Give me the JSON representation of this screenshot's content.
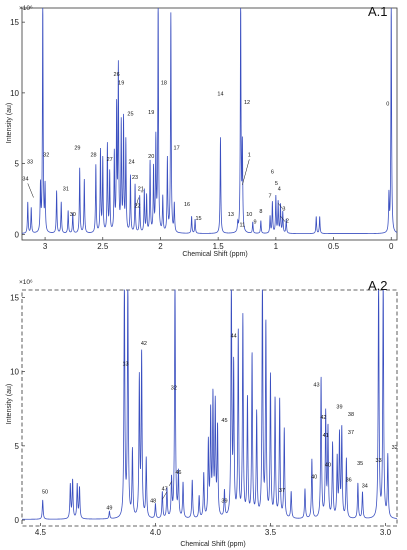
{
  "chart_data": [
    {
      "type": "line",
      "panel_label": "A.1",
      "xlabel": "Chemical Shift (ppm)",
      "ylabel": "Intensity (au)",
      "scale_label": "×10⁶",
      "x_reversed": true,
      "xlim": [
        3.2,
        -0.05
      ],
      "ylim": [
        -0.4,
        16
      ],
      "x_ticks": [
        3,
        2.5,
        2,
        1.5,
        1,
        0.5,
        0
      ],
      "x_tick_labels": [
        "3",
        "2.5",
        "2",
        "1.5",
        "1",
        "0.5",
        "0"
      ],
      "y_ticks": [
        0,
        5,
        10,
        15
      ],
      "y_tick_labels": [
        "0",
        "5",
        "10",
        "15"
      ],
      "line_color": "#3a4fc0",
      "peaks": [
        {
          "ppm": 3.15,
          "height": 2.2
        },
        {
          "ppm": 3.12,
          "height": 1.8
        },
        {
          "ppm": 3.04,
          "height": 3.3
        },
        {
          "ppm": 3.02,
          "height": 16.5
        },
        {
          "ppm": 3.0,
          "height": 3.2
        },
        {
          "ppm": 2.9,
          "height": 3.0
        },
        {
          "ppm": 2.86,
          "height": 2.2
        },
        {
          "ppm": 2.8,
          "height": 1.6
        },
        {
          "ppm": 2.76,
          "height": 1.4
        },
        {
          "ppm": 2.7,
          "height": 4.6
        },
        {
          "ppm": 2.66,
          "height": 3.8
        },
        {
          "ppm": 2.56,
          "height": 4.8
        },
        {
          "ppm": 2.52,
          "height": 5.8
        },
        {
          "ppm": 2.5,
          "height": 5.2
        },
        {
          "ppm": 2.46,
          "height": 6.2
        },
        {
          "ppm": 2.44,
          "height": 4.2
        },
        {
          "ppm": 2.4,
          "height": 5.5
        },
        {
          "ppm": 2.38,
          "height": 8.6
        },
        {
          "ppm": 2.365,
          "height": 11.5
        },
        {
          "ppm": 2.34,
          "height": 7.6
        },
        {
          "ppm": 2.32,
          "height": 7.9
        },
        {
          "ppm": 2.3,
          "height": 6.4
        },
        {
          "ppm": 2.26,
          "height": 4.0
        },
        {
          "ppm": 2.22,
          "height": 3.4
        },
        {
          "ppm": 2.18,
          "height": 2.6
        },
        {
          "ppm": 2.14,
          "height": 3.0
        },
        {
          "ppm": 2.12,
          "height": 2.6
        },
        {
          "ppm": 2.09,
          "height": 5.0
        },
        {
          "ppm": 2.06,
          "height": 4.5
        },
        {
          "ppm": 2.04,
          "height": 6.5
        },
        {
          "ppm": 2.02,
          "height": 16.5
        },
        {
          "ppm": 1.98,
          "height": 2.5
        },
        {
          "ppm": 1.94,
          "height": 5.2
        },
        {
          "ppm": 1.91,
          "height": 15.5
        },
        {
          "ppm": 1.88,
          "height": 2.0
        },
        {
          "ppm": 1.73,
          "height": 1.2
        },
        {
          "ppm": 1.7,
          "height": 1.0
        },
        {
          "ppm": 1.48,
          "height": 6.8
        },
        {
          "ppm": 1.33,
          "height": 0.6
        },
        {
          "ppm": 1.305,
          "height": 16.5
        },
        {
          "ppm": 1.29,
          "height": 6.0
        },
        {
          "ppm": 1.2,
          "height": 0.8
        },
        {
          "ppm": 1.13,
          "height": 0.9
        },
        {
          "ppm": 1.05,
          "height": 1.2
        },
        {
          "ppm": 1.03,
          "height": 2.2
        },
        {
          "ppm": 1.0,
          "height": 2.6
        },
        {
          "ppm": 0.98,
          "height": 2.2
        },
        {
          "ppm": 0.96,
          "height": 2.0
        },
        {
          "ppm": 0.94,
          "height": 1.5
        },
        {
          "ppm": 0.91,
          "height": 1.0
        },
        {
          "ppm": 0.65,
          "height": 1.2
        },
        {
          "ppm": 0.62,
          "height": 1.2
        },
        {
          "ppm": 0.02,
          "height": 2.6
        },
        {
          "ppm": 0.0,
          "height": 16.5
        }
      ],
      "annotations": [
        {
          "text": "0",
          "ppm": 0.03,
          "y": 9.1
        },
        {
          "text": "1",
          "ppm": 1.23,
          "y": 5.5
        },
        {
          "text": "2",
          "ppm": 0.9,
          "y": 0.85
        },
        {
          "text": "3",
          "ppm": 0.93,
          "y": 1.7
        },
        {
          "text": "4",
          "ppm": 0.97,
          "y": 3.1
        },
        {
          "text": "5",
          "ppm": 0.995,
          "y": 3.5
        },
        {
          "text": "6",
          "ppm": 1.03,
          "y": 4.3
        },
        {
          "text": "7",
          "ppm": 1.05,
          "y": 2.6
        },
        {
          "text": "8",
          "ppm": 1.13,
          "y": 1.5
        },
        {
          "text": "9",
          "ppm": 1.18,
          "y": 0.75
        },
        {
          "text": "10",
          "ppm": 1.23,
          "y": 1.3
        },
        {
          "text": "11",
          "ppm": 1.29,
          "y": 0.55
        },
        {
          "text": "12",
          "ppm": 1.25,
          "y": 9.2
        },
        {
          "text": "13",
          "ppm": 1.39,
          "y": 1.3
        },
        {
          "text": "14",
          "ppm": 1.48,
          "y": 9.8
        },
        {
          "text": "15",
          "ppm": 1.67,
          "y": 1.0
        },
        {
          "text": "16",
          "ppm": 1.77,
          "y": 2.0
        },
        {
          "text": "17",
          "ppm": 1.86,
          "y": 6.0
        },
        {
          "text": "18",
          "ppm": 1.97,
          "y": 10.6
        },
        {
          "text": "19",
          "ppm": 2.08,
          "y": 8.5
        },
        {
          "text": "19",
          "ppm": 2.34,
          "y": 10.6
        },
        {
          "text": "20",
          "ppm": 2.08,
          "y": 5.4
        },
        {
          "text": "21",
          "ppm": 2.17,
          "y": 3.1
        },
        {
          "text": "22",
          "ppm": 2.2,
          "y": 1.9
        },
        {
          "text": "23",
          "ppm": 2.22,
          "y": 3.9
        },
        {
          "text": "24",
          "ppm": 2.25,
          "y": 5.0
        },
        {
          "text": "25",
          "ppm": 2.26,
          "y": 8.4
        },
        {
          "text": "26",
          "ppm": 2.38,
          "y": 11.2
        },
        {
          "text": "27",
          "ppm": 2.44,
          "y": 5.2
        },
        {
          "text": "28",
          "ppm": 2.58,
          "y": 5.5
        },
        {
          "text": "29",
          "ppm": 2.72,
          "y": 6.0
        },
        {
          "text": "30",
          "ppm": 2.76,
          "y": 1.3
        },
        {
          "text": "31",
          "ppm": 2.82,
          "y": 3.1
        },
        {
          "text": "32",
          "ppm": 2.99,
          "y": 5.5
        },
        {
          "text": "33",
          "ppm": 3.13,
          "y": 5.0
        },
        {
          "text": "34",
          "ppm": 3.17,
          "y": 3.8
        }
      ],
      "leader_lines": [
        {
          "from": [
            1.23,
            5.3
          ],
          "to": [
            1.29,
            3.5
          ]
        },
        {
          "from": [
            0.92,
            0.9
          ],
          "to": [
            0.96,
            1.3
          ]
        },
        {
          "from": [
            0.94,
            1.8
          ],
          "to": [
            0.98,
            2.2
          ]
        },
        {
          "from": [
            2.21,
            2.0
          ],
          "to": [
            2.19,
            2.6
          ]
        },
        {
          "from": [
            2.17,
            3.0
          ],
          "to": [
            2.15,
            3.0
          ]
        },
        {
          "from": [
            3.15,
            3.6
          ],
          "to": [
            3.1,
            2.6
          ]
        }
      ]
    },
    {
      "type": "line",
      "panel_label": "A.2",
      "xlabel": "Chemical Shift (ppm)",
      "ylabel": "Intensity (au)",
      "scale_label": "×10⁶",
      "x_reversed": true,
      "xlim": [
        4.58,
        2.95
      ],
      "ylim": [
        -0.4,
        15.5
      ],
      "x_ticks": [
        4.5,
        4,
        3.5,
        3
      ],
      "x_tick_labels": [
        "4.5",
        "4.0",
        "3.5",
        "3.0"
      ],
      "y_ticks": [
        0,
        5,
        10,
        15
      ],
      "y_tick_labels": [
        "0",
        "5",
        "10",
        "15"
      ],
      "line_color": "#3a4fc0",
      "peaks": [
        {
          "ppm": 4.49,
          "height": 1.3
        },
        {
          "ppm": 4.37,
          "height": 2.3
        },
        {
          "ppm": 4.36,
          "height": 2.6
        },
        {
          "ppm": 4.34,
          "height": 2.3
        },
        {
          "ppm": 4.33,
          "height": 2.1
        },
        {
          "ppm": 4.2,
          "height": 0.5
        },
        {
          "ppm": 4.135,
          "height": 16.5
        },
        {
          "ppm": 4.12,
          "height": 16.5
        },
        {
          "ppm": 4.1,
          "height": 4.5
        },
        {
          "ppm": 4.07,
          "height": 9.3
        },
        {
          "ppm": 4.06,
          "height": 11.0
        },
        {
          "ppm": 4.04,
          "height": 4.0
        },
        {
          "ppm": 4.0,
          "height": 1.0
        },
        {
          "ppm": 3.97,
          "height": 1.8
        },
        {
          "ppm": 3.95,
          "height": 2.0
        },
        {
          "ppm": 3.93,
          "height": 2.6
        },
        {
          "ppm": 3.915,
          "height": 16.5
        },
        {
          "ppm": 3.9,
          "height": 3.0
        },
        {
          "ppm": 3.88,
          "height": 2.4
        },
        {
          "ppm": 3.84,
          "height": 2.6
        },
        {
          "ppm": 3.81,
          "height": 1.5
        },
        {
          "ppm": 3.79,
          "height": 3.0
        },
        {
          "ppm": 3.77,
          "height": 5.0
        },
        {
          "ppm": 3.76,
          "height": 7.0
        },
        {
          "ppm": 3.75,
          "height": 8.0
        },
        {
          "ppm": 3.74,
          "height": 7.5
        },
        {
          "ppm": 3.73,
          "height": 6.0
        },
        {
          "ppm": 3.7,
          "height": 1.8
        },
        {
          "ppm": 3.67,
          "height": 16.0
        },
        {
          "ppm": 3.66,
          "height": 10.0
        },
        {
          "ppm": 3.64,
          "height": 12.5
        },
        {
          "ppm": 3.62,
          "height": 13.5
        },
        {
          "ppm": 3.6,
          "height": 8.0
        },
        {
          "ppm": 3.58,
          "height": 11.0
        },
        {
          "ppm": 3.56,
          "height": 7.0
        },
        {
          "ppm": 3.535,
          "height": 16.5
        },
        {
          "ppm": 3.52,
          "height": 13.0
        },
        {
          "ppm": 3.5,
          "height": 9.5
        },
        {
          "ppm": 3.48,
          "height": 8.0
        },
        {
          "ppm": 3.46,
          "height": 8.0
        },
        {
          "ppm": 3.44,
          "height": 6.0
        },
        {
          "ppm": 3.41,
          "height": 1.8
        },
        {
          "ppm": 3.35,
          "height": 2.0
        },
        {
          "ppm": 3.32,
          "height": 4.0
        },
        {
          "ppm": 3.28,
          "height": 9.5
        },
        {
          "ppm": 3.26,
          "height": 7.0
        },
        {
          "ppm": 3.25,
          "height": 6.0
        },
        {
          "ppm": 3.23,
          "height": 5.0
        },
        {
          "ppm": 3.21,
          "height": 4.0
        },
        {
          "ppm": 3.2,
          "height": 5.5
        },
        {
          "ppm": 3.19,
          "height": 6.0
        },
        {
          "ppm": 3.17,
          "height": 4.0
        },
        {
          "ppm": 3.12,
          "height": 2.4
        },
        {
          "ppm": 3.1,
          "height": 1.8
        },
        {
          "ppm": 3.03,
          "height": 16.5
        },
        {
          "ppm": 3.01,
          "height": 16.5
        },
        {
          "ppm": 2.99,
          "height": 4.2
        }
      ],
      "annotations": [
        {
          "text": "13",
          "ppm": 4.13,
          "y": 10.4
        },
        {
          "text": "42",
          "ppm": 4.05,
          "y": 11.8
        },
        {
          "text": "32",
          "ppm": 3.92,
          "y": 8.8
        },
        {
          "text": "44",
          "ppm": 3.66,
          "y": 12.3
        },
        {
          "text": "45",
          "ppm": 3.7,
          "y": 6.6
        },
        {
          "text": "46",
          "ppm": 3.9,
          "y": 3.1
        },
        {
          "text": "47",
          "ppm": 3.96,
          "y": 2.0
        },
        {
          "text": "48",
          "ppm": 4.01,
          "y": 1.2
        },
        {
          "text": "49",
          "ppm": 4.2,
          "y": 0.7
        },
        {
          "text": "50",
          "ppm": 4.48,
          "y": 1.8
        },
        {
          "text": "39",
          "ppm": 3.7,
          "y": 1.2
        },
        {
          "text": "37",
          "ppm": 3.45,
          "y": 1.9
        },
        {
          "text": "40",
          "ppm": 3.31,
          "y": 2.8
        },
        {
          "text": "40",
          "ppm": 3.25,
          "y": 3.6
        },
        {
          "text": "41",
          "ppm": 3.26,
          "y": 5.6
        },
        {
          "text": "42",
          "ppm": 3.27,
          "y": 6.8
        },
        {
          "text": "43",
          "ppm": 3.3,
          "y": 9.0
        },
        {
          "text": "39",
          "ppm": 3.2,
          "y": 7.5
        },
        {
          "text": "38",
          "ppm": 3.15,
          "y": 7.0
        },
        {
          "text": "37",
          "ppm": 3.15,
          "y": 5.8
        },
        {
          "text": "36",
          "ppm": 3.16,
          "y": 2.6
        },
        {
          "text": "35",
          "ppm": 3.11,
          "y": 3.7
        },
        {
          "text": "34",
          "ppm": 3.09,
          "y": 2.2
        },
        {
          "text": "33",
          "ppm": 3.03,
          "y": 3.9
        },
        {
          "text": "32",
          "ppm": 2.96,
          "y": 4.8
        }
      ],
      "leader_lines": [
        {
          "from": [
            3.97,
            1.4
          ],
          "to": [
            3.95,
            1.9
          ]
        },
        {
          "from": [
            3.94,
            2.3
          ],
          "to": [
            3.93,
            2.6
          ]
        }
      ]
    }
  ]
}
